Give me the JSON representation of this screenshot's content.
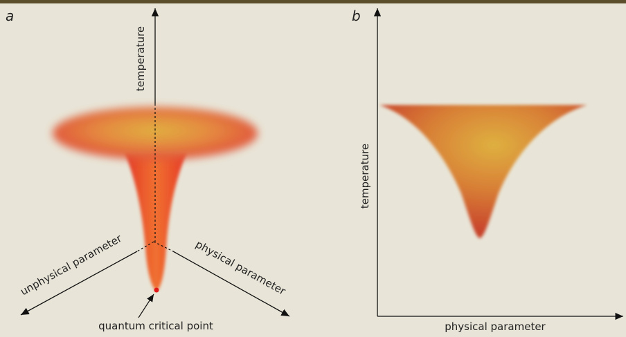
{
  "panel_a": {
    "label": "a",
    "axis_vertical": "temperature",
    "axis_left": "unphysical parameter",
    "axis_right": "physical parameter",
    "point_label": "quantum critical point"
  },
  "panel_b": {
    "label": "b",
    "y_axis": "temperature",
    "x_axis": "physical parameter"
  }
}
